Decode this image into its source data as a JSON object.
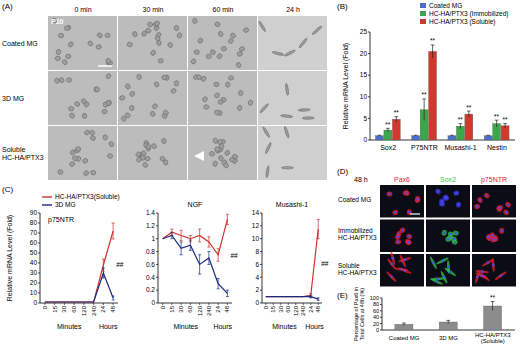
{
  "figure": {
    "panel_a": {
      "panel": "(A)",
      "columns": [
        "0 min",
        "30 min",
        "60 min",
        "24 h"
      ],
      "rows": [
        "Coated MG",
        "3D MG",
        "Soluble HC-HA/PTX3"
      ],
      "stage": "P10"
    },
    "panel_d": {
      "panel": "(D)",
      "time": "48 h",
      "columns": [
        "Pax6",
        "Sox2",
        "p75NTR"
      ],
      "column_colors": [
        "#e8202a",
        "#2ecc40",
        "#e8202a"
      ],
      "rows": [
        "Coated MG",
        "Immobilized HC-HA/PTX3",
        "Soluble HC-HA/PTX3"
      ]
    }
  },
  "chart_data": [
    {
      "panel": "(B)",
      "type": "bar",
      "y_label": "Relative mRNA Level (Fold)",
      "categories": [
        "Sox2",
        "P75NTR",
        "Musashi-1",
        "Nestin"
      ],
      "ylim": [
        0,
        25
      ],
      "yticks": [
        0,
        5,
        10,
        15,
        20,
        25
      ],
      "legend": "top-right",
      "series": [
        {
          "name": "Coated MG",
          "color": "#4a6fc8",
          "values": [
            1,
            1,
            1,
            1
          ],
          "errors": [
            0.1,
            0.1,
            0.1,
            0.1
          ]
        },
        {
          "name": "HC-HA/PTX3 (Immobilized)",
          "color": "#3aa74a",
          "values": [
            2.3,
            7,
            3.2,
            3.8
          ],
          "errors": [
            0.4,
            2.5,
            0.6,
            0.8
          ],
          "significance": [
            "**",
            "**",
            "**",
            "**"
          ]
        },
        {
          "name": "HC-HA/PTX3 (Soluble)",
          "color": "#d03a2e",
          "values": [
            4.8,
            20.5,
            6,
            3.3
          ],
          "errors": [
            0.6,
            1.5,
            0.7,
            0.5
          ],
          "significance": [
            "**",
            "**",
            "**",
            "**"
          ]
        }
      ]
    },
    {
      "panel": "(C)",
      "type": "line",
      "title": "p75NTR",
      "y_label": "Relative mRNA Level (Fold)",
      "categories": [
        "0",
        "15",
        "30",
        "60",
        "120",
        "240",
        "24",
        "48"
      ],
      "x_groups": [
        {
          "label": "Minutes",
          "from": 0,
          "to": 5
        },
        {
          "label": "Hours",
          "from": 6,
          "to": 7
        }
      ],
      "ylim": [
        0,
        90
      ],
      "yticks": [
        0,
        10,
        20,
        30,
        40,
        50,
        60,
        70,
        80,
        90
      ],
      "legend": "top-left",
      "series": [
        {
          "name": "HC-HA/PTX3(Soluble)",
          "color": "#d0312d",
          "values": [
            1,
            1,
            1,
            1,
            1,
            1,
            38,
            72
          ],
          "errors": [
            null,
            null,
            null,
            null,
            null,
            null,
            6,
            8
          ],
          "significance": [
            null,
            null,
            null,
            null,
            null,
            null,
            null,
            "##"
          ]
        },
        {
          "name": "3D MG",
          "color": "#1a2a80",
          "values": [
            1,
            1,
            1,
            1,
            1,
            1,
            30,
            5
          ],
          "errors": [
            null,
            null,
            null,
            null,
            null,
            null,
            5,
            2
          ]
        }
      ]
    },
    {
      "type": "line",
      "title": "NGF",
      "categories": [
        "0",
        "15",
        "30",
        "60",
        "120",
        "240",
        "24",
        "48"
      ],
      "x_groups": [
        {
          "label": "Minutes",
          "from": 0,
          "to": 5
        },
        {
          "label": "Hours",
          "from": 6,
          "to": 7
        }
      ],
      "ylim": [
        0,
        1.4
      ],
      "yticks": [
        0,
        0.2,
        0.4,
        0.6,
        0.8,
        1,
        1.2,
        1.4
      ],
      "series": [
        {
          "name": "HC-HA/PTX3(Soluble)",
          "color": "#d0312d",
          "values": [
            1,
            1.1,
            1.05,
            1,
            1.05,
            0.95,
            0.75,
            1.3
          ],
          "errors": [
            null,
            0.05,
            0.08,
            0.05,
            0.1,
            0.08,
            0.1,
            0.08
          ],
          "significance": [
            null,
            null,
            null,
            null,
            null,
            null,
            null,
            "##"
          ]
        },
        {
          "name": "3D MG",
          "color": "#1a2a80",
          "values": [
            1,
            1.05,
            0.85,
            0.9,
            0.6,
            0.7,
            0.3,
            0.15
          ],
          "errors": [
            null,
            0.05,
            0.1,
            0.08,
            0.15,
            0.1,
            0.08,
            0.05
          ]
        }
      ]
    },
    {
      "type": "line",
      "title": "Musashi-1",
      "categories": [
        "0",
        "15",
        "30",
        "60",
        "120",
        "240",
        "24",
        "48"
      ],
      "x_groups": [
        {
          "label": "Minutes",
          "from": 0,
          "to": 5
        },
        {
          "label": "Hours",
          "from": 6,
          "to": 7
        }
      ],
      "ylim": [
        0,
        14
      ],
      "yticks": [
        0,
        2,
        4,
        6,
        8,
        10,
        12,
        14
      ],
      "series": [
        {
          "name": "HC-HA/PTX3(Soluble)",
          "color": "#d0312d",
          "values": [
            1,
            1,
            1,
            1,
            1,
            1,
            1.2,
            11.5
          ],
          "errors": [
            null,
            null,
            null,
            null,
            null,
            null,
            0.3,
            1.5
          ],
          "significance": [
            null,
            null,
            null,
            null,
            null,
            null,
            null,
            "##"
          ]
        },
        {
          "name": "3D MG",
          "color": "#1a2a80",
          "values": [
            1,
            1,
            1,
            1,
            1,
            1,
            1,
            0.6
          ],
          "errors": [
            null,
            null,
            null,
            null,
            null,
            null,
            0.2,
            0.2
          ]
        }
      ]
    },
    {
      "panel": "(E)",
      "type": "bar",
      "y_label": "Percentage of Pax6 in Total Cells at 48h (%)",
      "categories": [
        "Coated MG",
        "3D MG",
        "HC-HA/PTX3 (Soluble)"
      ],
      "values": [
        18,
        25,
        75
      ],
      "errors": [
        4,
        5,
        14
      ],
      "significance": [
        null,
        null,
        "**"
      ],
      "color": "#8c8c8c",
      "ylim": [
        0,
        100
      ],
      "yticks": [
        0,
        20,
        40,
        60,
        80,
        100
      ]
    }
  ]
}
